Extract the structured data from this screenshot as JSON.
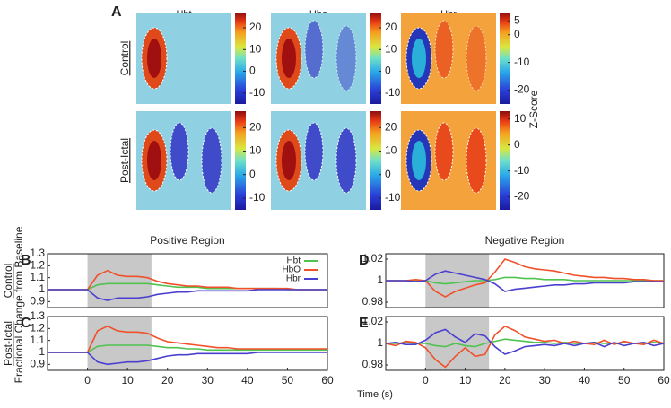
{
  "chart_data": [
    {
      "type": "heatmap",
      "panel_label": "A",
      "col_titles": [
        "Hbt",
        "Hbo",
        "Hbr"
      ],
      "row_labels": [
        "Control",
        "Post-Ictal"
      ],
      "colorbar_label": "Z-Score",
      "colorbars": [
        {
          "clim": [
            -15,
            27
          ],
          "cticks": [
            20,
            10,
            0,
            -10
          ]
        },
        {
          "clim": [
            -15,
            27
          ],
          "cticks": [
            20,
            10,
            0,
            -10
          ]
        },
        {
          "clim": [
            -25,
            8
          ],
          "cticks": [
            5,
            0,
            -10,
            -20
          ]
        },
        {
          "clim": [
            -15,
            27
          ],
          "cticks": [
            20,
            10,
            0,
            -10
          ]
        },
        {
          "clim": [
            -15,
            27
          ],
          "cticks": [
            20,
            10,
            0,
            -10
          ]
        },
        {
          "clim": [
            -25,
            13
          ],
          "cticks": [
            10,
            0,
            -10,
            -20
          ]
        }
      ]
    },
    {
      "type": "line",
      "panel_label": "B",
      "title": "Positive Region",
      "row_label": "Control",
      "ylabel": "Fractional Change from Baseline",
      "legend": "upper right",
      "shade": [
        0,
        16
      ],
      "x": [
        -10,
        -7.5,
        -5,
        -2.5,
        0,
        2.5,
        5,
        7.5,
        10,
        12.5,
        15,
        17.5,
        20,
        22.5,
        25,
        27.5,
        30,
        32.5,
        35,
        37.5,
        40,
        42.5,
        45,
        47.5,
        50,
        52.5,
        55,
        57.5,
        60
      ],
      "xlim": [
        -10,
        60
      ],
      "ylim": [
        0.85,
        1.3
      ],
      "yticks": [
        0.9,
        1,
        1.1,
        1.2,
        1.3
      ],
      "series": [
        {
          "name": "Hbt",
          "color": "#4fc24f",
          "values": [
            1,
            1,
            1,
            1,
            1,
            1.04,
            1.05,
            1.05,
            1.05,
            1.05,
            1.05,
            1.04,
            1.03,
            1.02,
            1.02,
            1.02,
            1.01,
            1.01,
            1.01,
            1.01,
            1.01,
            1.01,
            1.01,
            1.01,
            1,
            1,
            1,
            1,
            1
          ]
        },
        {
          "name": "HbO",
          "color": "#f0502a",
          "values": [
            1,
            1,
            1,
            1,
            1,
            1.12,
            1.16,
            1.12,
            1.11,
            1.11,
            1.1,
            1.07,
            1.05,
            1.04,
            1.03,
            1.03,
            1.02,
            1.02,
            1.02,
            1.01,
            1.01,
            1.01,
            1.01,
            1.01,
            1.01,
            1,
            1,
            1,
            1
          ]
        },
        {
          "name": "Hbr",
          "color": "#4a3fcf",
          "values": [
            1,
            1,
            1,
            1,
            1,
            0.93,
            0.91,
            0.93,
            0.93,
            0.93,
            0.94,
            0.96,
            0.97,
            0.98,
            0.98,
            0.99,
            0.99,
            0.99,
            0.99,
            0.99,
            0.99,
            1,
            1,
            1,
            1,
            1,
            1,
            1,
            1
          ]
        }
      ]
    },
    {
      "type": "line",
      "panel_label": "C",
      "row_label": "Post-Ictal",
      "shade": [
        0,
        16
      ],
      "x": [
        -10,
        -7.5,
        -5,
        -2.5,
        0,
        2.5,
        5,
        7.5,
        10,
        12.5,
        15,
        17.5,
        20,
        22.5,
        25,
        27.5,
        30,
        32.5,
        35,
        37.5,
        40,
        42.5,
        45,
        47.5,
        50,
        52.5,
        55,
        57.5,
        60
      ],
      "xlim": [
        -10,
        60
      ],
      "xticks": [
        0,
        10,
        20,
        30,
        40,
        50,
        60
      ],
      "ylim": [
        0.85,
        1.3
      ],
      "yticks": [
        0.9,
        1,
        1.1,
        1.2,
        1.3
      ],
      "series": [
        {
          "name": "Hbt",
          "color": "#4fc24f",
          "values": [
            1,
            1,
            1,
            1,
            1,
            1.05,
            1.06,
            1.06,
            1.06,
            1.06,
            1.06,
            1.05,
            1.04,
            1.04,
            1.03,
            1.03,
            1.02,
            1.02,
            1.02,
            1.02,
            1.02,
            1.02,
            1.02,
            1.02,
            1.02,
            1.02,
            1.02,
            1.02,
            1.02
          ]
        },
        {
          "name": "HbO",
          "color": "#f0502a",
          "values": [
            1,
            1,
            1,
            1,
            1,
            1.18,
            1.22,
            1.18,
            1.17,
            1.17,
            1.16,
            1.12,
            1.09,
            1.08,
            1.07,
            1.06,
            1.05,
            1.04,
            1.04,
            1.03,
            1.03,
            1.03,
            1.03,
            1.03,
            1.03,
            1.03,
            1.03,
            1.03,
            1.03
          ]
        },
        {
          "name": "Hbr",
          "color": "#4a3fcf",
          "values": [
            1,
            1,
            1,
            1,
            1,
            0.92,
            0.9,
            0.91,
            0.92,
            0.92,
            0.93,
            0.95,
            0.97,
            0.98,
            0.98,
            0.99,
            0.99,
            0.99,
            0.99,
            0.99,
            0.99,
            1,
            1,
            1,
            1,
            1,
            1,
            1,
            1
          ]
        }
      ]
    },
    {
      "type": "line",
      "panel_label": "D",
      "title": "Negative Region",
      "shade": [
        0,
        16
      ],
      "x": [
        -10,
        -7.5,
        -5,
        -2.5,
        0,
        2.5,
        5,
        7.5,
        10,
        12.5,
        15,
        17.5,
        20,
        22.5,
        25,
        27.5,
        30,
        32.5,
        35,
        37.5,
        40,
        42.5,
        45,
        47.5,
        50,
        52.5,
        55,
        57.5,
        60
      ],
      "xlim": [
        -10,
        60
      ],
      "ylim": [
        0.975,
        1.025
      ],
      "yticks": [
        0.98,
        1,
        1.02
      ],
      "series": [
        {
          "name": "Hbt",
          "color": "#4fc24f",
          "values": [
            1,
            1,
            1,
            1,
            1,
            0.998,
            0.997,
            0.998,
            0.999,
            1,
            1,
            1.001,
            1.003,
            1.003,
            1.002,
            1.002,
            1.001,
            1.001,
            1.001,
            1,
            1,
            1,
            1,
            1,
            1,
            1,
            1,
            1,
            1
          ]
        },
        {
          "name": "HbO",
          "color": "#f0502a",
          "values": [
            1,
            1,
            1,
            1.001,
            1,
            0.99,
            0.985,
            0.99,
            0.993,
            0.996,
            0.998,
            1.008,
            1.02,
            1.017,
            1.013,
            1.011,
            1.01,
            1.009,
            1.007,
            1.005,
            1.004,
            1.003,
            1.003,
            1.002,
            1.002,
            1.001,
            1.001,
            1,
            1
          ]
        },
        {
          "name": "Hbr",
          "color": "#4a3fcf",
          "values": [
            1,
            1,
            1,
            0.999,
            1,
            1.006,
            1.009,
            1.007,
            1.005,
            1.003,
            1.001,
            0.997,
            0.99,
            0.992,
            0.993,
            0.994,
            0.995,
            0.996,
            0.996,
            0.997,
            0.997,
            0.998,
            0.998,
            0.998,
            0.998,
            0.999,
            0.999,
            0.999,
            0.999
          ]
        }
      ]
    },
    {
      "type": "line",
      "panel_label": "E",
      "xlabel": "Time (s)",
      "shade": [
        0,
        16
      ],
      "x": [
        -10,
        -7.5,
        -5,
        -2.5,
        0,
        2.5,
        5,
        7.5,
        10,
        12.5,
        15,
        17.5,
        20,
        22.5,
        25,
        27.5,
        30,
        32.5,
        35,
        37.5,
        40,
        42.5,
        45,
        47.5,
        50,
        52.5,
        55,
        57.5,
        60
      ],
      "xlim": [
        -10,
        60
      ],
      "xticks": [
        0,
        10,
        20,
        30,
        40,
        50,
        60
      ],
      "ylim": [
        0.975,
        1.025
      ],
      "yticks": [
        0.98,
        1,
        1.02
      ],
      "series": [
        {
          "name": "Hbt",
          "color": "#4fc24f",
          "values": [
            1,
            1,
            1.001,
            1,
            1,
            0.998,
            0.997,
            1,
            0.998,
            0.997,
            1,
            1.002,
            1.004,
            1.003,
            1.002,
            1.001,
            1.001,
            1,
            1.001,
            1,
            1,
            1.001,
            1,
            1,
            1.001,
            1,
            1,
            1.001,
            1
          ]
        },
        {
          "name": "HbO",
          "color": "#f0502a",
          "values": [
            1,
            0.998,
            1.002,
            1.001,
            0.996,
            0.985,
            0.978,
            0.988,
            0.996,
            0.988,
            0.99,
            1.008,
            1.016,
            1.012,
            1.006,
            1.004,
            1.002,
            1.003,
            1,
            1.002,
            1,
            0.999,
            1.003,
            0.999,
            1.002,
            1,
            0.999,
            1.003,
            1
          ]
        },
        {
          "name": "Hbr",
          "color": "#4a3fcf",
          "values": [
            1,
            1.001,
            0.999,
            0.999,
            1.003,
            1.01,
            1.013,
            1.006,
            1.001,
            1.009,
            1.007,
            0.997,
            0.99,
            0.993,
            0.997,
            0.998,
            0.999,
            0.998,
            1,
            0.998,
            1,
            1.001,
            0.997,
            1.001,
            0.998,
            1,
            1.001,
            0.998,
            1
          ]
        }
      ]
    }
  ]
}
